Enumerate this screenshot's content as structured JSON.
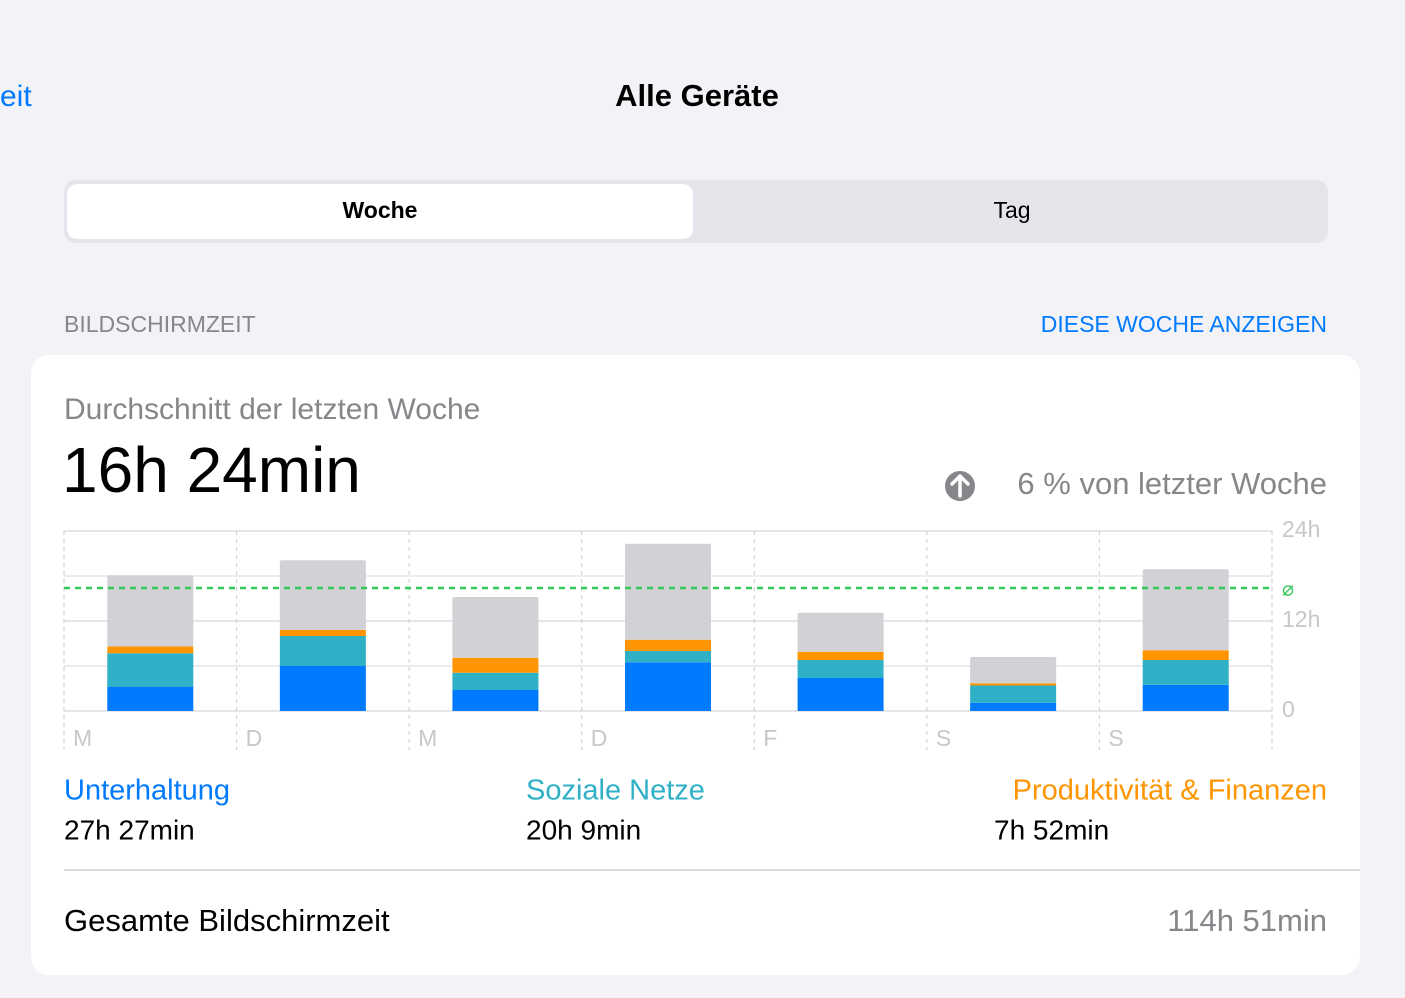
{
  "nav": {
    "back": "eit",
    "title": "Alle Geräte"
  },
  "segments": {
    "options": [
      "Woche",
      "Tag"
    ],
    "selected": 0
  },
  "section": {
    "title": "BILDSCHIRMZEIT",
    "link": "DIESE WOCHE ANZEIGEN"
  },
  "summary": {
    "label": "Durchschnitt der letzten Woche",
    "value": "16h 24min",
    "change": "6 % von letzter Woche"
  },
  "chart_data": {
    "type": "bar",
    "stacked": true,
    "categories": [
      "M",
      "D",
      "M",
      "D",
      "F",
      "S",
      "S"
    ],
    "series": [
      {
        "name": "Unterhaltung",
        "total": "27h 27min",
        "color": "#007aff",
        "values": [
          3.2,
          6.0,
          2.8,
          6.5,
          4.4,
          1.1,
          3.5
        ]
      },
      {
        "name": "Soziale Netze",
        "total": "20h 9min",
        "color": "#30b0c7",
        "values": [
          4.5,
          4.0,
          2.3,
          1.5,
          2.4,
          2.3,
          3.3
        ]
      },
      {
        "name": "Produktivität & Finanzen",
        "total": "7h 52min",
        "color": "#ff9500",
        "values": [
          0.9,
          0.8,
          2.0,
          1.5,
          1.1,
          0.3,
          1.3
        ]
      },
      {
        "color": "#d1d1d6",
        "values": [
          9.5,
          9.3,
          8.1,
          12.8,
          5.2,
          3.5,
          10.8
        ]
      }
    ],
    "ylim": [
      0,
      24
    ],
    "yticks": [
      0,
      {
        "value": 12,
        "label": "12h"
      },
      {
        "value": 24,
        "label": "24h"
      }
    ],
    "minor_yticks": [
      6,
      18
    ],
    "grid": true,
    "average": 16.4,
    "average_label": "⌀",
    "average_color": "#34c759"
  },
  "totals": {
    "label": "Gesamte Bildschirmzeit",
    "value": "114h 51min"
  }
}
